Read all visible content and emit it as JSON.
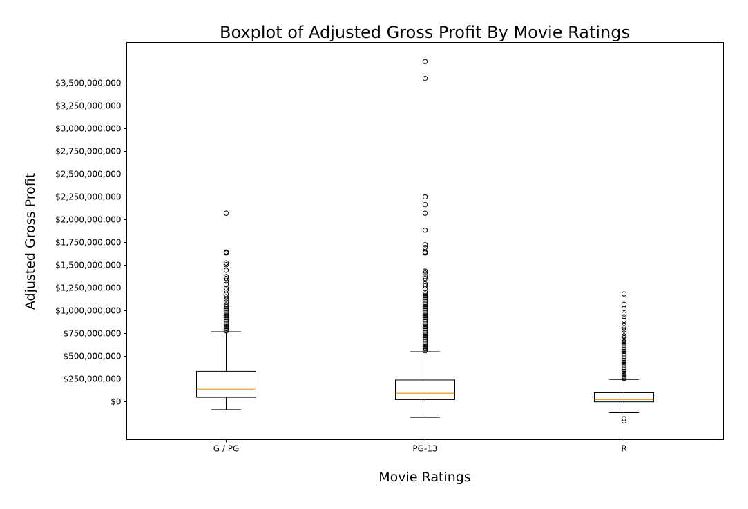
{
  "chart_data": {
    "type": "boxplot",
    "title": "Boxplot of Adjusted Gross Profit By Movie Ratings",
    "xlabel": "Movie Ratings",
    "ylabel": "Adjusted Gross Profit",
    "ylim": [
      -420000000,
      3940000000
    ],
    "yticks": [
      0,
      250000000,
      500000000,
      750000000,
      1000000000,
      1250000000,
      1500000000,
      1750000000,
      2000000000,
      2250000000,
      2500000000,
      2750000000,
      3000000000,
      3250000000,
      3500000000
    ],
    "ytick_labels": [
      "$0",
      "$250,000,000",
      "$500,000,000",
      "$750,000,000",
      "$1,000,000,000",
      "$1,250,000,000",
      "$1,500,000,000",
      "$1,750,000,000",
      "$2,000,000,000",
      "$2,250,000,000",
      "$2,500,000,000",
      "$2,750,000,000",
      "$3,000,000,000",
      "$3,250,000,000",
      "$3,500,000,000"
    ],
    "grid": false,
    "median_color": "#e69a2e",
    "categories": [
      "G / PG",
      "PG-13",
      "R"
    ],
    "boxes": [
      {
        "category": "G / PG",
        "whisker_low": -90000000,
        "q1": 45000000,
        "median": 135000000,
        "q3": 330000000,
        "whisker_high": 765000000,
        "fliers": [
          2065000000,
          1640000000,
          1630000000,
          1520000000,
          1500000000,
          1440000000,
          1370000000,
          1350000000,
          1320000000,
          1285000000,
          1245000000,
          1225000000,
          1175000000,
          1150000000,
          1120000000,
          1090000000,
          1060000000,
          1040000000,
          1020000000,
          1000000000,
          980000000,
          960000000,
          940000000,
          920000000,
          900000000,
          880000000,
          860000000,
          840000000,
          820000000,
          800000000,
          785000000,
          775000000
        ]
      },
      {
        "category": "PG-13",
        "whisker_low": -175000000,
        "q1": 20000000,
        "median": 90000000,
        "q3": 235000000,
        "whisker_high": 545000000,
        "fliers": [
          3730000000,
          3545000000,
          2245000000,
          2160000000,
          2065000000,
          1880000000,
          1720000000,
          1690000000,
          1640000000,
          1630000000,
          1430000000,
          1410000000,
          1370000000,
          1350000000,
          1290000000,
          1270000000,
          1240000000,
          1200000000,
          1180000000,
          1160000000,
          1140000000,
          1120000000,
          1100000000,
          1080000000,
          1060000000,
          1040000000,
          1020000000,
          1000000000,
          980000000,
          960000000,
          940000000,
          920000000,
          900000000,
          880000000,
          860000000,
          840000000,
          820000000,
          800000000,
          780000000,
          760000000,
          740000000,
          720000000,
          700000000,
          680000000,
          660000000,
          640000000,
          620000000,
          600000000,
          580000000,
          565000000,
          555000000
        ]
      },
      {
        "category": "R",
        "whisker_low": -125000000,
        "q1": -5000000,
        "median": 20000000,
        "q3": 95000000,
        "whisker_high": 240000000,
        "fliers": [
          1180000000,
          1065000000,
          1020000000,
          960000000,
          930000000,
          890000000,
          830000000,
          810000000,
          780000000,
          750000000,
          720000000,
          700000000,
          670000000,
          650000000,
          630000000,
          610000000,
          590000000,
          570000000,
          550000000,
          530000000,
          510000000,
          490000000,
          470000000,
          450000000,
          430000000,
          410000000,
          390000000,
          370000000,
          350000000,
          330000000,
          310000000,
          290000000,
          275000000,
          262000000,
          252000000,
          -190000000,
          -215000000
        ]
      }
    ]
  }
}
